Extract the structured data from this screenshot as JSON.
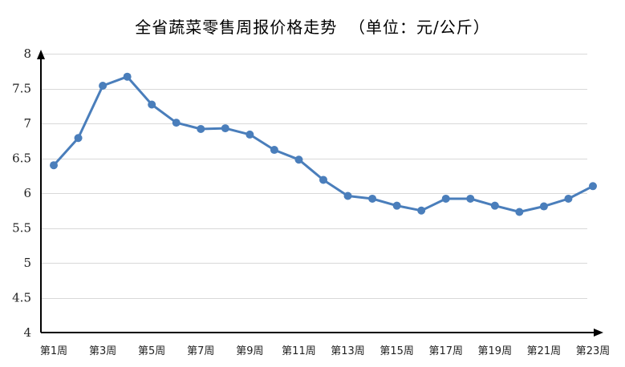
{
  "chart_data": {
    "type": "line",
    "title": "全省蔬菜零售周报价格走势  （单位：元/公斤）",
    "x": [
      "第1周",
      "第2周",
      "第3周",
      "第4周",
      "第5周",
      "第6周",
      "第7周",
      "第8周",
      "第9周",
      "第10周",
      "第11周",
      "第12周",
      "第13周",
      "第14周",
      "第15周",
      "第16周",
      "第17周",
      "第18周",
      "第19周",
      "第20周",
      "第21周",
      "第22周",
      "第23周"
    ],
    "x_tick_labels": [
      "第1周",
      "第3周",
      "第5周",
      "第7周",
      "第9周",
      "第11周",
      "第13周",
      "第15周",
      "第17周",
      "第19周",
      "第21周",
      "第23周"
    ],
    "y_tick_labels": [
      "4",
      "4.5",
      "5",
      "5.5",
      "6",
      "6.5",
      "7",
      "7.5",
      "8"
    ],
    "series": [
      {
        "values": [
          6.4,
          6.79,
          7.54,
          7.67,
          7.27,
          7.01,
          6.92,
          6.93,
          6.84,
          6.62,
          6.48,
          6.19,
          5.96,
          5.92,
          5.82,
          5.75,
          5.92,
          5.92,
          5.82,
          5.73,
          5.81,
          5.92,
          6.1
        ],
        "color": "#4a7ebb"
      }
    ],
    "ylim": [
      4,
      8
    ],
    "ytick_step": 0.5,
    "grid": true,
    "legend": "none",
    "xlabel": "",
    "ylabel": ""
  }
}
